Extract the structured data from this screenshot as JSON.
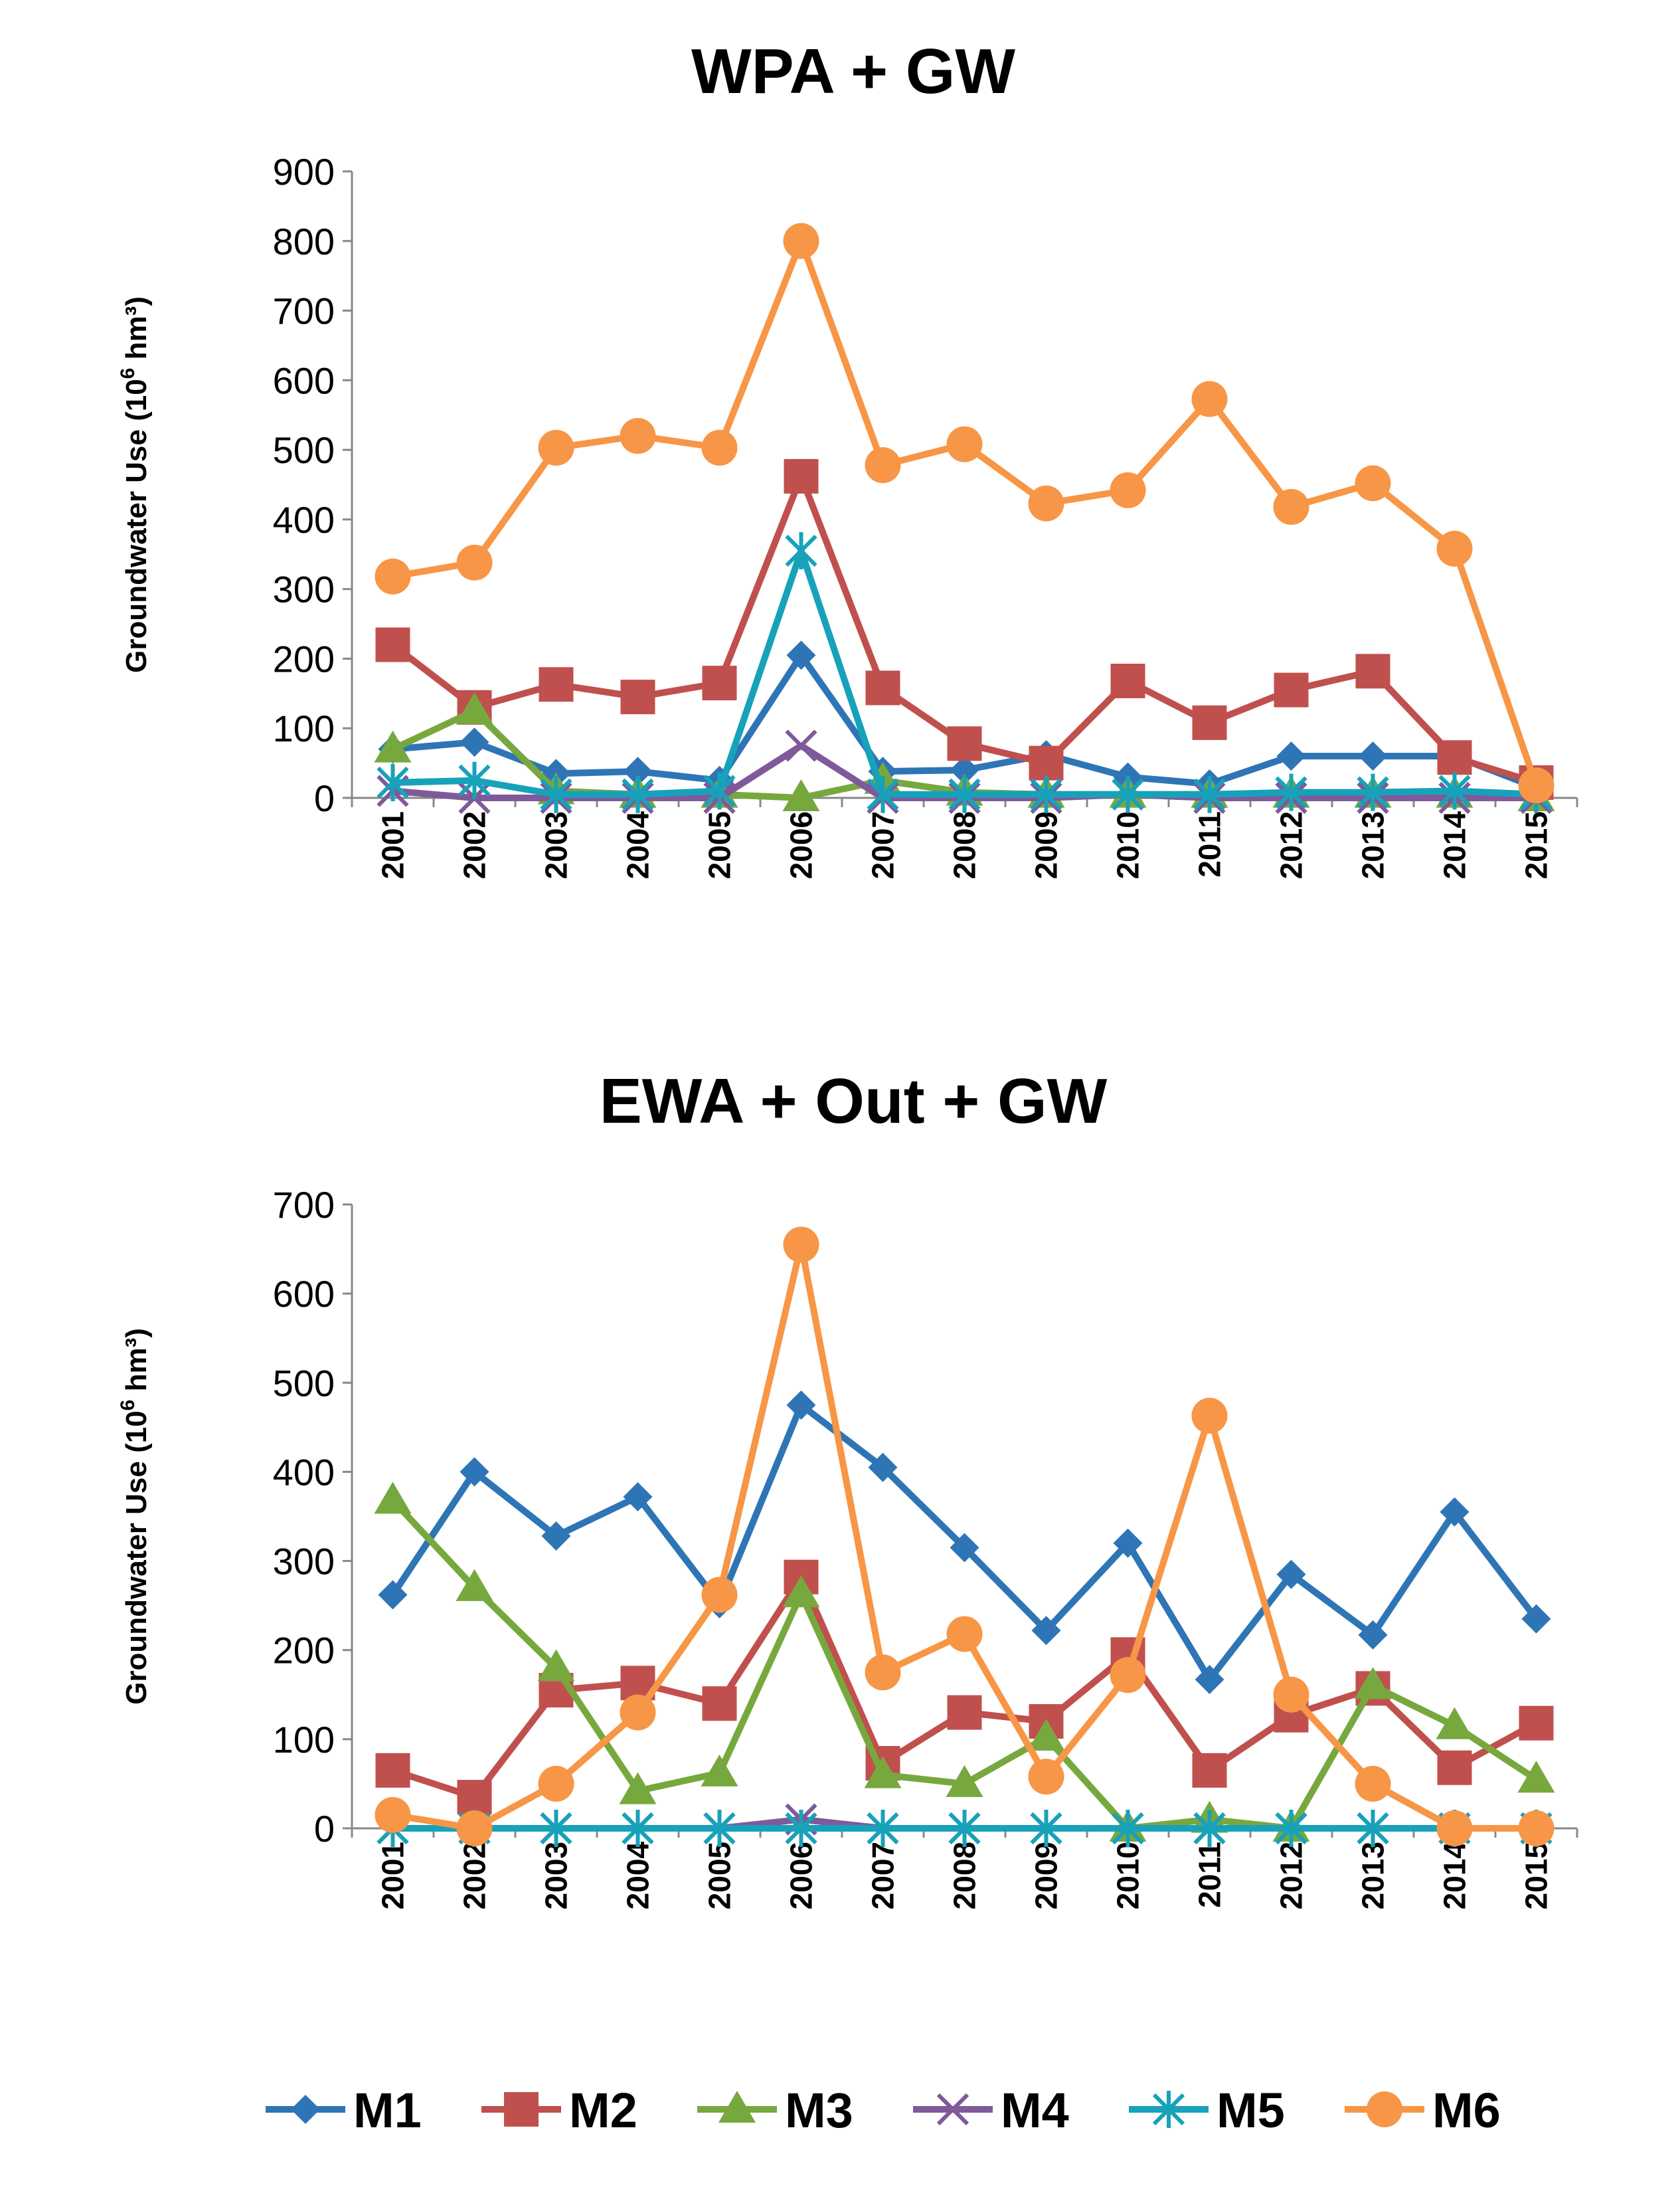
{
  "chart_data": [
    {
      "type": "line",
      "title": "WPA + GW",
      "xlabel": "",
      "ylabel": "Groundwater Use (10",
      "ylabel_sup": "6",
      "ylabel_unit": " hm³)",
      "categories": [
        "2001",
        "2002",
        "2003",
        "2004",
        "2005",
        "2006",
        "2007",
        "2008",
        "2009",
        "2010",
        "2011",
        "2012",
        "2013",
        "2014",
        "2015"
      ],
      "ylim": [
        0,
        900
      ],
      "yticks": [
        0,
        100,
        200,
        300,
        400,
        500,
        600,
        700,
        800,
        900
      ],
      "series": [
        {
          "name": "M1",
          "values": [
            70,
            80,
            35,
            38,
            25,
            205,
            38,
            40,
            62,
            30,
            20,
            60,
            60,
            60,
            15
          ]
        },
        {
          "name": "M2",
          "values": [
            220,
            130,
            163,
            145,
            165,
            462,
            158,
            78,
            50,
            168,
            108,
            155,
            182,
            58,
            22
          ]
        },
        {
          "name": "M3",
          "values": [
            70,
            125,
            10,
            5,
            5,
            0,
            25,
            8,
            5,
            5,
            5,
            5,
            5,
            5,
            0
          ]
        },
        {
          "name": "M4",
          "values": [
            10,
            0,
            0,
            0,
            0,
            75,
            0,
            0,
            0,
            5,
            0,
            0,
            0,
            0,
            0
          ]
        },
        {
          "name": "M5",
          "values": [
            22,
            25,
            5,
            5,
            10,
            355,
            5,
            5,
            5,
            5,
            5,
            8,
            8,
            10,
            5
          ]
        },
        {
          "name": "M6",
          "values": [
            318,
            338,
            503,
            520,
            503,
            800,
            478,
            508,
            423,
            442,
            573,
            418,
            452,
            358,
            18
          ]
        }
      ]
    },
    {
      "type": "line",
      "title": "EWA + Out + GW",
      "xlabel": "",
      "ylabel": "Groundwater Use (10",
      "ylabel_sup": "6",
      "ylabel_unit": " hm³)",
      "categories": [
        "2001",
        "2002",
        "2003",
        "2004",
        "2005",
        "2006",
        "2007",
        "2008",
        "2009",
        "2010",
        "2011",
        "2012",
        "2013",
        "2014",
        "2015"
      ],
      "ylim": [
        0,
        700
      ],
      "yticks": [
        0,
        100,
        200,
        300,
        400,
        500,
        600,
        700
      ],
      "series": [
        {
          "name": "M1",
          "values": [
            262,
            400,
            328,
            372,
            252,
            475,
            405,
            315,
            222,
            320,
            167,
            285,
            217,
            355,
            235
          ]
        },
        {
          "name": "M2",
          "values": [
            65,
            35,
            155,
            163,
            140,
            282,
            73,
            130,
            120,
            195,
            65,
            127,
            157,
            68,
            118
          ]
        },
        {
          "name": "M3",
          "values": [
            368,
            270,
            180,
            42,
            62,
            263,
            60,
            50,
            102,
            0,
            10,
            0,
            160,
            115,
            55
          ]
        },
        {
          "name": "M4",
          "values": [
            0,
            0,
            0,
            0,
            0,
            10,
            0,
            0,
            0,
            0,
            0,
            0,
            0,
            0,
            0
          ]
        },
        {
          "name": "M5",
          "values": [
            0,
            0,
            0,
            0,
            0,
            0,
            0,
            0,
            0,
            0,
            0,
            0,
            0,
            0,
            0
          ]
        },
        {
          "name": "M6",
          "values": [
            15,
            0,
            50,
            130,
            262,
            655,
            175,
            218,
            58,
            172,
            463,
            150,
            50,
            0,
            0
          ]
        }
      ]
    }
  ],
  "legend": {
    "position": "bottom-center",
    "items": [
      {
        "name": "M1",
        "color": "#2E75B6",
        "marker": "diamond"
      },
      {
        "name": "M2",
        "color": "#C0504D",
        "marker": "square"
      },
      {
        "name": "M3",
        "color": "#77A83E",
        "marker": "triangle"
      },
      {
        "name": "M4",
        "color": "#7E5A9B",
        "marker": "x"
      },
      {
        "name": "M5",
        "color": "#17A2BA",
        "marker": "star"
      },
      {
        "name": "M6",
        "color": "#F79646",
        "marker": "circle"
      }
    ]
  }
}
